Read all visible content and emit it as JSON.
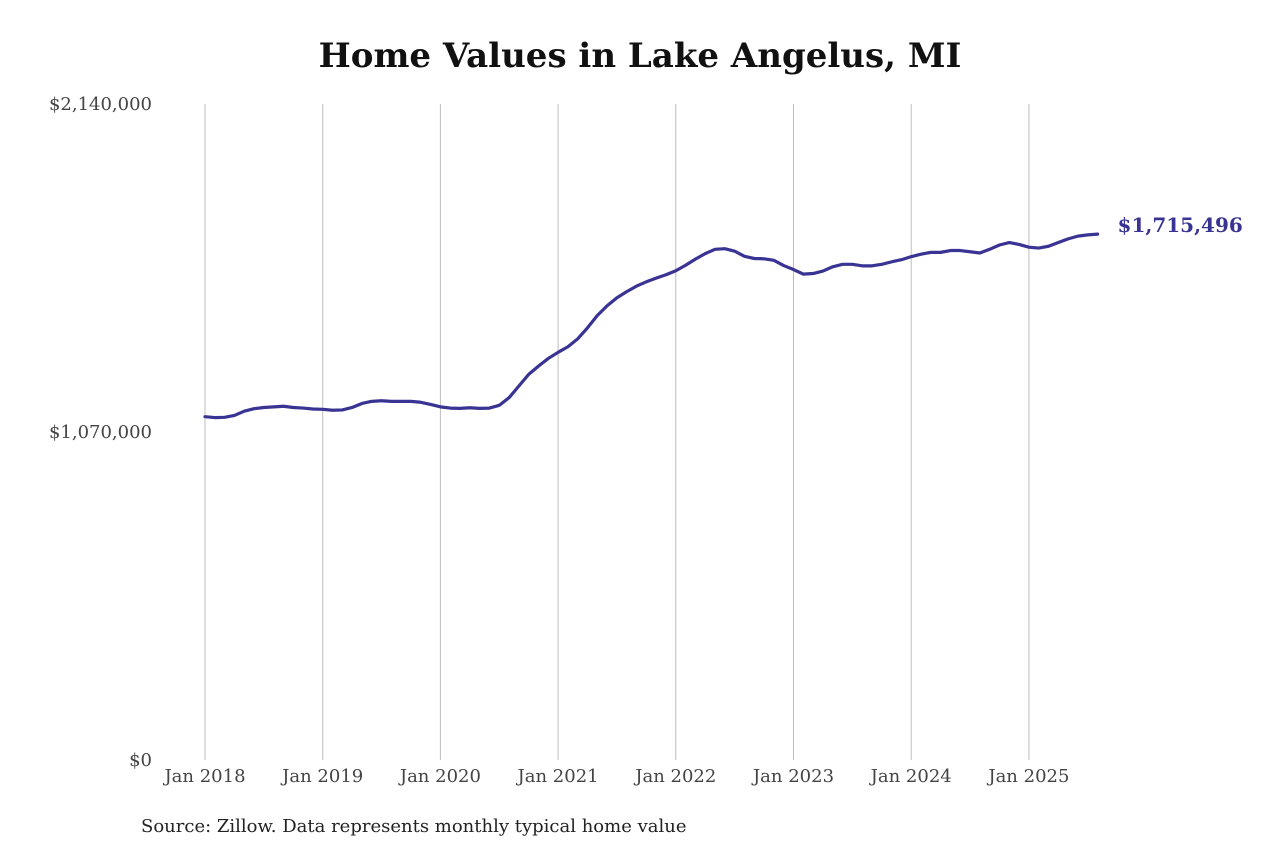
{
  "chart_data": {
    "type": "line",
    "title": "Home Values in Lake Angelus, MI",
    "source": "Source: Zillow. Data represents monthly typical home value",
    "xlabel": "",
    "ylabel": "",
    "ylim": [
      0,
      2140000
    ],
    "yticks": [
      {
        "value": 0,
        "label": "$0"
      },
      {
        "value": 1070000,
        "label": "$1,070,000"
      },
      {
        "value": 2140000,
        "label": "$2,140,000"
      }
    ],
    "xticks": [
      {
        "value": "2018-01",
        "label": "Jan 2018"
      },
      {
        "value": "2019-01",
        "label": "Jan 2019"
      },
      {
        "value": "2020-01",
        "label": "Jan 2020"
      },
      {
        "value": "2021-01",
        "label": "Jan 2021"
      },
      {
        "value": "2022-01",
        "label": "Jan 2022"
      },
      {
        "value": "2023-01",
        "label": "Jan 2023"
      },
      {
        "value": "2024-01",
        "label": "Jan 2024"
      },
      {
        "value": "2025-01",
        "label": "Jan 2025"
      }
    ],
    "xlim": [
      "2018-01",
      "2025-08"
    ],
    "grid": {
      "vertical": true,
      "horizontal": false
    },
    "series": [
      {
        "color": "#393393",
        "end_label": "$1,715,496",
        "points": [
          [
            "2018-01",
            1120000
          ],
          [
            "2018-02",
            1117000
          ],
          [
            "2018-03",
            1118000
          ],
          [
            "2018-04",
            1124000
          ],
          [
            "2018-05",
            1138000
          ],
          [
            "2018-06",
            1146000
          ],
          [
            "2018-07",
            1150000
          ],
          [
            "2018-08",
            1152000
          ],
          [
            "2018-09",
            1154000
          ],
          [
            "2018-10",
            1150000
          ],
          [
            "2018-11",
            1148000
          ],
          [
            "2018-12",
            1145000
          ],
          [
            "2019-01",
            1144000
          ],
          [
            "2019-02",
            1141000
          ],
          [
            "2019-03",
            1142000
          ],
          [
            "2019-04",
            1150000
          ],
          [
            "2019-05",
            1163000
          ],
          [
            "2019-06",
            1170000
          ],
          [
            "2019-07",
            1172000
          ],
          [
            "2019-08",
            1170000
          ],
          [
            "2019-09",
            1170000
          ],
          [
            "2019-10",
            1170000
          ],
          [
            "2019-11",
            1167000
          ],
          [
            "2019-12",
            1160000
          ],
          [
            "2020-01",
            1152000
          ],
          [
            "2020-02",
            1148000
          ],
          [
            "2020-03",
            1147000
          ],
          [
            "2020-04",
            1149000
          ],
          [
            "2020-05",
            1147000
          ],
          [
            "2020-06",
            1148000
          ],
          [
            "2020-07",
            1157000
          ],
          [
            "2020-08",
            1182000
          ],
          [
            "2020-09",
            1220000
          ],
          [
            "2020-10",
            1258000
          ],
          [
            "2020-11",
            1285000
          ],
          [
            "2020-12",
            1310000
          ],
          [
            "2021-01",
            1330000
          ],
          [
            "2021-02",
            1348000
          ],
          [
            "2021-03",
            1374000
          ],
          [
            "2021-04",
            1410000
          ],
          [
            "2021-05",
            1450000
          ],
          [
            "2021-06",
            1482000
          ],
          [
            "2021-07",
            1508000
          ],
          [
            "2021-08",
            1528000
          ],
          [
            "2021-09",
            1546000
          ],
          [
            "2021-10",
            1560000
          ],
          [
            "2021-11",
            1572000
          ],
          [
            "2021-12",
            1583000
          ],
          [
            "2022-01",
            1596000
          ],
          [
            "2022-02",
            1614000
          ],
          [
            "2022-03",
            1634000
          ],
          [
            "2022-04",
            1652000
          ],
          [
            "2022-05",
            1666000
          ],
          [
            "2022-06",
            1668000
          ],
          [
            "2022-07",
            1660000
          ],
          [
            "2022-08",
            1643000
          ],
          [
            "2022-09",
            1636000
          ],
          [
            "2022-10",
            1635000
          ],
          [
            "2022-11",
            1630000
          ],
          [
            "2022-12",
            1613000
          ],
          [
            "2023-01",
            1600000
          ],
          [
            "2023-02",
            1585000
          ],
          [
            "2023-03",
            1587000
          ],
          [
            "2023-04",
            1595000
          ],
          [
            "2023-05",
            1609000
          ],
          [
            "2023-06",
            1617000
          ],
          [
            "2023-07",
            1617000
          ],
          [
            "2023-08",
            1612000
          ],
          [
            "2023-09",
            1612000
          ],
          [
            "2023-10",
            1617000
          ],
          [
            "2023-11",
            1625000
          ],
          [
            "2023-12",
            1632000
          ],
          [
            "2024-01",
            1642000
          ],
          [
            "2024-02",
            1650000
          ],
          [
            "2024-03",
            1656000
          ],
          [
            "2024-04",
            1656000
          ],
          [
            "2024-05",
            1662000
          ],
          [
            "2024-06",
            1662000
          ],
          [
            "2024-07",
            1658000
          ],
          [
            "2024-08",
            1654000
          ],
          [
            "2024-09",
            1666000
          ],
          [
            "2024-10",
            1680000
          ],
          [
            "2024-11",
            1688000
          ],
          [
            "2024-12",
            1682000
          ],
          [
            "2025-01",
            1673000
          ],
          [
            "2025-02",
            1670000
          ],
          [
            "2025-03",
            1676000
          ],
          [
            "2025-04",
            1688000
          ],
          [
            "2025-05",
            1700000
          ],
          [
            "2025-06",
            1709000
          ],
          [
            "2025-07",
            1713000
          ],
          [
            "2025-08",
            1715496
          ]
        ]
      }
    ]
  }
}
